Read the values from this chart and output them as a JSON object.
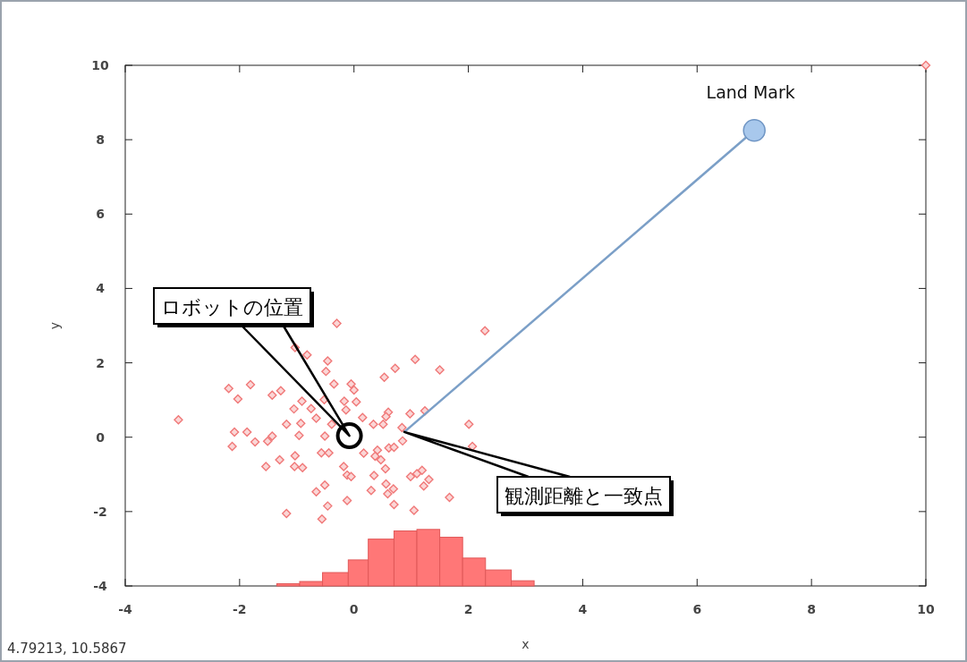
{
  "chart_data": {
    "type": "scatter",
    "xlabel": "x",
    "ylabel": "y",
    "xlim": [
      -4,
      10
    ],
    "ylim": [
      -4,
      10
    ],
    "xticks": [
      -4,
      -2,
      0,
      2,
      4,
      6,
      8,
      10
    ],
    "yticks": [
      -4,
      -2,
      0,
      2,
      4,
      6,
      8,
      10
    ],
    "grid": false,
    "series": [
      {
        "type": "histogram",
        "color": "#ff7777",
        "bins": [
          -1.35,
          -0.95,
          -0.55,
          -0.1,
          0.25,
          0.7,
          1.1,
          1.5,
          1.9,
          2.3,
          2.75,
          3.15
        ],
        "base": [
          -4,
          -4,
          -4,
          -4,
          -4,
          -4,
          -4,
          -4,
          -4,
          -4,
          -4
        ],
        "values": [
          0.06,
          0.12,
          0.36,
          0.7,
          1.26,
          1.48,
          1.52,
          1.31,
          0.75,
          0.43,
          0.14
        ]
      },
      {
        "type": "scatter",
        "color": "#f07878",
        "marker": "diamond",
        "x": [
          -1.03,
          -0.82,
          -0.46,
          -0.49,
          -0.3,
          -2.19,
          -1.81,
          -2.03,
          -1.43,
          -1.28,
          -0.91,
          -0.75,
          -1.05,
          -0.66,
          -0.52,
          -0.35,
          -3.07,
          -0.93,
          -1.18,
          -0.39,
          -0.96,
          -0.51,
          -2.09,
          -1.87,
          -1.43,
          -1.51,
          -1.73,
          -2.13,
          -0.57,
          -0.44,
          -1.03,
          -1.3,
          -1.54,
          -1.04,
          -0.9,
          -0.51,
          -0.66,
          -0.46,
          -1.18,
          -0.56,
          2.29,
          1.07,
          0.72,
          1.5,
          0.53,
          -0.05,
          0.0,
          -0.17,
          0.04,
          -0.14,
          0.15,
          0.6,
          0.56,
          0.98,
          1.24,
          0.34,
          0.51,
          0.84,
          0.85,
          2.01,
          0.61,
          0.7,
          0.41,
          0.17,
          0.37,
          0.47,
          2.07,
          -0.18,
          -0.12,
          -0.05,
          0.55,
          0.35,
          0.99,
          1.1,
          1.19,
          1.31,
          1.22,
          0.56,
          0.69,
          0.59,
          0.3,
          -0.12,
          0.7,
          1.05,
          1.67,
          10
        ],
        "values": [
          2.41,
          2.21,
          2.05,
          1.77,
          3.06,
          1.31,
          1.41,
          1.03,
          1.13,
          1.25,
          0.97,
          0.77,
          0.76,
          0.51,
          1.01,
          1.43,
          0.47,
          0.37,
          0.35,
          0.35,
          0.05,
          0.03,
          0.14,
          0.14,
          0.03,
          -0.11,
          -0.13,
          -0.25,
          -0.42,
          -0.42,
          -0.5,
          -0.61,
          -0.79,
          -0.79,
          -0.82,
          -1.29,
          -1.47,
          -1.85,
          -2.05,
          -2.2,
          2.86,
          2.09,
          1.85,
          1.81,
          1.61,
          1.43,
          1.27,
          0.97,
          0.95,
          0.73,
          0.53,
          0.67,
          0.55,
          0.63,
          0.71,
          0.35,
          0.35,
          0.26,
          -0.1,
          0.35,
          -0.29,
          -0.27,
          -0.35,
          -0.43,
          -0.51,
          -0.61,
          -0.25,
          -0.79,
          -1.02,
          -1.06,
          -0.85,
          -1.03,
          -1.06,
          -0.98,
          -0.89,
          -1.14,
          -1.31,
          -1.26,
          -1.39,
          -1.52,
          -1.43,
          -1.7,
          -1.81,
          -1.97,
          -1.62,
          10
        ]
      },
      {
        "type": "line",
        "color": "#7b9fc7",
        "x": [
          0.88,
          7
        ],
        "values": [
          0.14,
          8.25
        ]
      },
      {
        "type": "scatter",
        "color": "#a8c8ec",
        "marker": "circle",
        "x": [
          7
        ],
        "values": [
          8.25
        ]
      },
      {
        "type": "scatter",
        "color": "#000000",
        "marker": "circle",
        "x": [
          -0.08
        ],
        "values": [
          0.04
        ]
      }
    ],
    "annotations": [
      {
        "text": "Land Mark",
        "x": 7,
        "y": 8.25
      },
      "ロボットの位置",
      "観測距離と一致点",
      "4.79213,  10.5867"
    ]
  }
}
